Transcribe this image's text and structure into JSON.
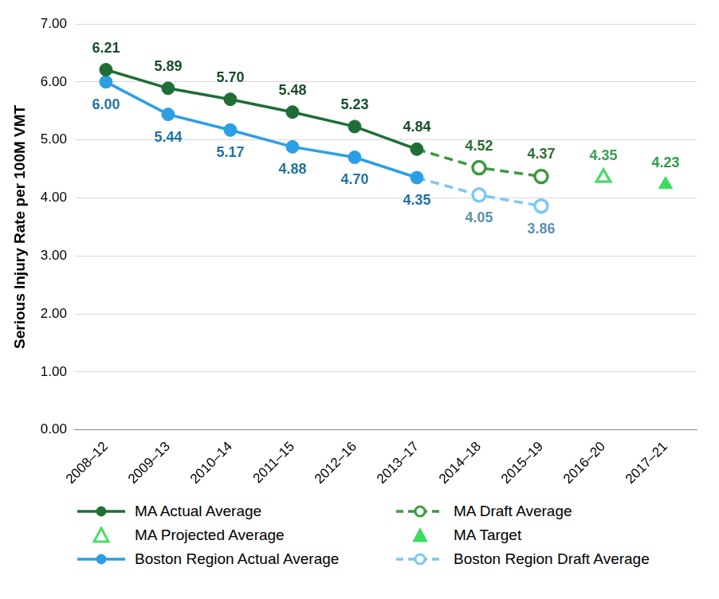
{
  "chart_data": {
    "type": "line",
    "y_label": "Serious Injury Rate per 100M VMT",
    "categories": [
      "2008–12",
      "2009–13",
      "2010–14",
      "2011–15",
      "2012–16",
      "2013–17",
      "2014–18",
      "2015–19",
      "2016–20",
      "2017–21"
    ],
    "ylim": [
      0,
      7
    ],
    "yticks": [
      {
        "value": 0,
        "label": "0.00"
      },
      {
        "value": 1,
        "label": "1.00"
      },
      {
        "value": 2,
        "label": "2.00"
      },
      {
        "value": 3,
        "label": "3.00"
      },
      {
        "value": 4,
        "label": "4.00"
      },
      {
        "value": 5,
        "label": "5.00"
      },
      {
        "value": 6,
        "label": "6.00"
      },
      {
        "value": 7,
        "label": "7.00"
      }
    ],
    "grid": true,
    "legend": "bottom",
    "data_labels": true,
    "series": [
      {
        "name": "MA Actual Average",
        "color": "#1f6e35",
        "marker": "circle",
        "line_style": "solid",
        "values": [
          6.21,
          5.89,
          5.7,
          5.48,
          5.23,
          4.84,
          null,
          null,
          null,
          null
        ],
        "value_labels": [
          "6.21",
          "5.89",
          "5.70",
          "5.48",
          "5.23",
          "4.84",
          null,
          null,
          null,
          null
        ]
      },
      {
        "name": "MA Draft Average",
        "color": "#3b9a3f",
        "marker": "circle-open",
        "line_style": "dashed",
        "values": [
          null,
          null,
          null,
          null,
          null,
          null,
          4.52,
          4.37,
          null,
          null
        ],
        "value_labels": [
          null,
          null,
          null,
          null,
          null,
          null,
          "4.52",
          "4.37",
          null,
          null
        ]
      },
      {
        "name": "MA Projected Average",
        "color": "#4fdc6e",
        "marker": "triangle-open",
        "line_style": "none",
        "values": [
          null,
          null,
          null,
          null,
          null,
          null,
          null,
          null,
          4.35,
          null
        ],
        "value_labels": [
          null,
          null,
          null,
          null,
          null,
          null,
          null,
          null,
          "4.35",
          null
        ]
      },
      {
        "name": "MA Target",
        "color": "#3ddc5f",
        "marker": "triangle",
        "line_style": "none",
        "values": [
          null,
          null,
          null,
          null,
          null,
          null,
          null,
          null,
          null,
          4.23
        ],
        "value_labels": [
          null,
          null,
          null,
          null,
          null,
          null,
          null,
          null,
          null,
          "4.23"
        ]
      },
      {
        "name": "Boston Region Actual Average",
        "color": "#2a9fe6",
        "marker": "circle",
        "line_style": "solid",
        "values": [
          6.0,
          5.44,
          5.17,
          4.88,
          4.7,
          4.35,
          null,
          null,
          null,
          null
        ],
        "value_labels": [
          "6.00",
          "5.44",
          "5.17",
          "4.88",
          "4.70",
          "4.35",
          null,
          null,
          null,
          null
        ]
      },
      {
        "name": "Boston Region Draft Average",
        "color": "#7cc8f2",
        "marker": "circle-open",
        "line_style": "dashed",
        "values": [
          null,
          null,
          null,
          null,
          null,
          null,
          4.05,
          3.86,
          null,
          null
        ],
        "value_labels": [
          null,
          null,
          null,
          null,
          null,
          null,
          "4.05",
          "3.86",
          null,
          null
        ]
      }
    ]
  }
}
